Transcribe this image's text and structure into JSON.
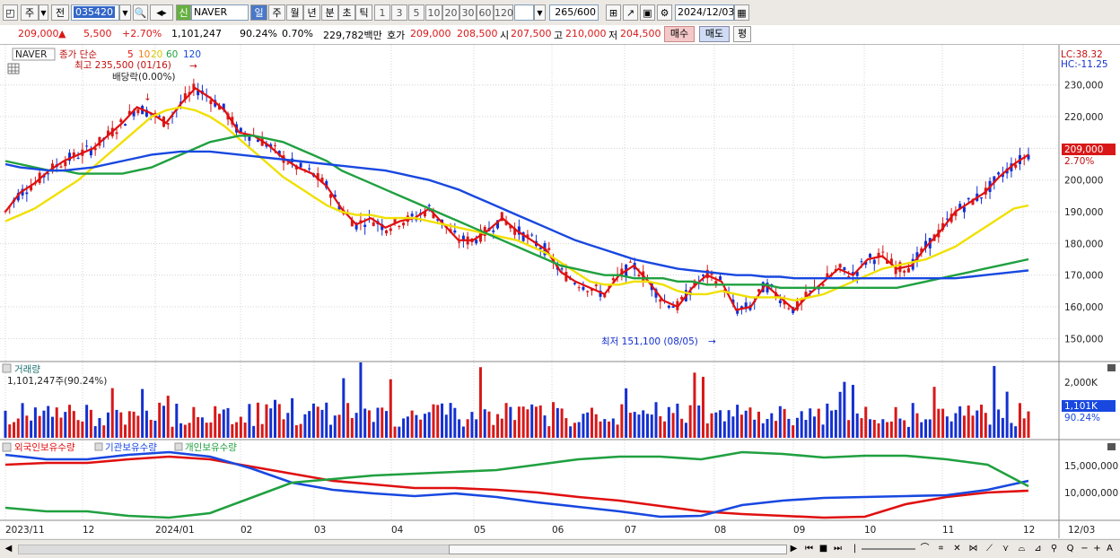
{
  "toolbar": {
    "mode": "주",
    "jeon": "전",
    "code": "035420",
    "name": "NAVER",
    "shin": "신",
    "periods": [
      "일",
      "주",
      "월",
      "년",
      "분",
      "초",
      "틱"
    ],
    "intervals": [
      "1",
      "3",
      "5",
      "10",
      "20",
      "30",
      "60",
      "120"
    ],
    "count": "265",
    "total": "/600",
    "date": "2024/12/03"
  },
  "quote": {
    "price": "209,000",
    "change": "5,500",
    "pct": "+2.70%",
    "volume": "1,101,247",
    "vol_ratio": "90.24%",
    "turnover_ratio": "0.70%",
    "amount": "229,782백만",
    "hoga_label": "호가",
    "hoga_ask": "209,000",
    "hoga_bid": "208,500",
    "open_label": "시",
    "open": "207,500",
    "high_label": "고",
    "high": "210,000",
    "low_label": "저",
    "low": "204,500",
    "buy": "매수",
    "sell": "매도",
    "pyeong": "평"
  },
  "price_panel": {
    "symbol": "NAVER",
    "legend_prefix": "종가 단순",
    "ma": [
      {
        "label": "5",
        "color": "#e01010"
      },
      {
        "label": "10",
        "color": "#f08010"
      },
      {
        "label": "20",
        "color": "#f0e000"
      },
      {
        "label": "60",
        "color": "#20a040"
      },
      {
        "label": "120",
        "color": "#1848e0"
      }
    ],
    "high_note": "최고 235,500 (01/16)",
    "dividend_note": "배당락(0.00%)",
    "low_note": "최저 151,100 (08/05)",
    "lc": "LC:38.32",
    "hc": "HC:-11.25",
    "current_price": "209,000",
    "current_pct": "2.70%",
    "y_ticks": [
      "230,000",
      "220,000",
      "210,000",
      "200,000",
      "190,000",
      "180,000",
      "170,000",
      "160,000",
      "150,000"
    ]
  },
  "volume_panel": {
    "title": "거래량",
    "value": "1,101,247주(90.24%)",
    "tick": "2,000K",
    "current": "1,101K",
    "current_pct": "90.24%"
  },
  "holding_panel": {
    "legends": [
      {
        "label": "외국인보유수량",
        "color": "#e01010"
      },
      {
        "label": "기관보유수량",
        "color": "#1848e0"
      },
      {
        "label": "개인보유수량",
        "color": "#20a040"
      }
    ],
    "ticks": [
      "15,000,000",
      "10,000,000"
    ]
  },
  "x_axis": {
    "labels": [
      "2023/11",
      "12",
      "2024/01",
      "02",
      "03",
      "04",
      "05",
      "06",
      "07",
      "08",
      "09",
      "10",
      "11",
      "12"
    ],
    "end_label": "12/03"
  },
  "colors": {
    "up": "#d81818",
    "down": "#1430d0",
    "grid": "#d4d4d4"
  },
  "chart_data": {
    "type": "line",
    "ylim": [
      145000,
      237000
    ],
    "series": [
      {
        "name": "5",
        "values": [
          190000,
          196000,
          199000,
          203000,
          206000,
          208000,
          210000,
          214000,
          218000,
          223000,
          221000,
          218000,
          224000,
          229000,
          226000,
          222000,
          215000,
          214000,
          211000,
          207000,
          204000,
          202000,
          198000,
          191000,
          186000,
          188000,
          185000,
          187000,
          188000,
          191000,
          186000,
          181000,
          181000,
          184000,
          188000,
          184000,
          181000,
          178000,
          171000,
          168000,
          166000,
          164000,
          170000,
          173000,
          168000,
          162000,
          160000,
          166000,
          170000,
          168000,
          159000,
          160000,
          167000,
          163000,
          159000,
          164000,
          168000,
          172000,
          170000,
          175000,
          176000,
          172000,
          173000,
          179000,
          184000,
          190000,
          193000,
          196000,
          201000,
          205000,
          208000
        ]
      },
      {
        "name": "20",
        "values": [
          187000,
          189000,
          191000,
          194000,
          197000,
          200000,
          204000,
          208000,
          212000,
          216000,
          220000,
          222000,
          223000,
          222000,
          220000,
          217000,
          213000,
          209000,
          205000,
          201000,
          198000,
          195000,
          192000,
          190000,
          189000,
          189000,
          188000,
          188000,
          188000,
          187000,
          186000,
          185000,
          184000,
          183000,
          182000,
          181000,
          179000,
          177000,
          174000,
          171000,
          168000,
          167000,
          167000,
          168000,
          168000,
          167000,
          165000,
          164000,
          164000,
          165000,
          164000,
          163000,
          163000,
          163000,
          162000,
          163000,
          164000,
          166000,
          168000,
          170000,
          172000,
          173000,
          174000,
          175000,
          177000,
          179000,
          182000,
          185000,
          188000,
          191000,
          192000
        ]
      },
      {
        "name": "60",
        "values": [
          206000,
          205000,
          204000,
          203000,
          203000,
          202000,
          202000,
          202000,
          202000,
          203000,
          204000,
          206000,
          208000,
          210000,
          212000,
          213000,
          214000,
          214000,
          213000,
          212000,
          210000,
          208000,
          206000,
          203000,
          201000,
          199000,
          197000,
          195000,
          193000,
          191000,
          189000,
          187000,
          185000,
          183000,
          181000,
          179000,
          177000,
          175000,
          173000,
          172000,
          171000,
          170000,
          170000,
          169000,
          169000,
          169000,
          168000,
          168000,
          167000,
          167000,
          167000,
          167000,
          167000,
          166000,
          166000,
          166000,
          166000,
          166000,
          166000,
          166000,
          166000,
          166000,
          167000,
          168000,
          169000,
          170000,
          171000,
          172000,
          173000,
          174000,
          175000
        ]
      },
      {
        "name": "120",
        "values": [
          205000,
          204000,
          203500,
          203000,
          203000,
          203500,
          204000,
          205000,
          206000,
          207000,
          208000,
          208500,
          209000,
          209000,
          209000,
          208500,
          208000,
          207500,
          207000,
          206500,
          206000,
          205500,
          205000,
          204500,
          204000,
          203500,
          203000,
          202000,
          201000,
          200000,
          198500,
          197000,
          195000,
          193000,
          191000,
          189000,
          187000,
          185000,
          183000,
          181000,
          179500,
          178000,
          176500,
          175000,
          174000,
          173000,
          172000,
          171500,
          171000,
          170500,
          170000,
          170000,
          169500,
          169500,
          169000,
          169000,
          169000,
          169000,
          169000,
          169000,
          169000,
          169000,
          169000,
          169000,
          169000,
          169000,
          169500,
          170000,
          170500,
          171000,
          171500
        ]
      }
    ]
  }
}
